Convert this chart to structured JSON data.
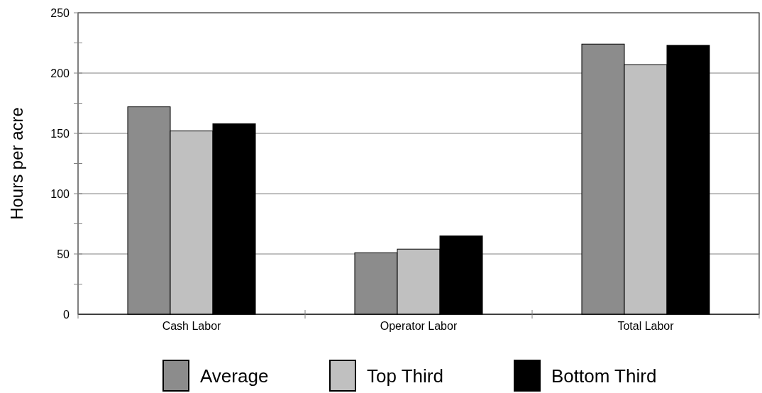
{
  "chart_data": {
    "type": "bar",
    "ylabel": "Hours per acre",
    "categories": [
      "Cash Labor",
      "Operator Labor",
      "Total Labor"
    ],
    "series": [
      {
        "name": "Average",
        "color": "#8c8c8c",
        "values": [
          172,
          51,
          224
        ]
      },
      {
        "name": "Top Third",
        "color": "#c0c0c0",
        "values": [
          152,
          54,
          207
        ]
      },
      {
        "name": "Bottom Third",
        "color": "#000000",
        "values": [
          158,
          65,
          223
        ]
      }
    ],
    "ylim": [
      0,
      250
    ],
    "yticks": [
      0,
      {
        "value": 25,
        "label": null
      },
      50,
      {
        "value": 75,
        "label": null
      },
      100,
      {
        "value": 125,
        "label": null
      },
      150,
      {
        "value": 175,
        "label": null
      },
      200,
      {
        "value": 225,
        "label": null
      },
      250
    ],
    "grid": "y",
    "legend": "bottom"
  }
}
